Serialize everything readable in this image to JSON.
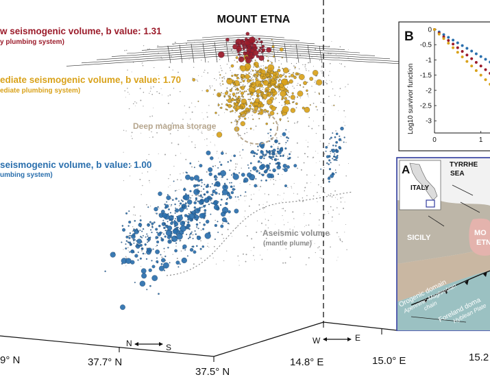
{
  "title": "MOUNT ETNA",
  "volumes": {
    "shallow": {
      "label": "w seismogenic volume, b value: 1.31",
      "sublabel": "y plumbing system)",
      "color": "#9b1b2a"
    },
    "intermediate": {
      "label": "ediate seismogenic volume, b value: 1.70",
      "sublabel": "ediate plumbing system)",
      "color": "#d9a21b"
    },
    "deep": {
      "label": "seismogenic volume, b value: 1.00",
      "sublabel": "umbing system)",
      "color": "#2a6fad"
    },
    "magma_storage": {
      "label": "Deep magma storage",
      "color": "#b6a68e"
    },
    "aseismic": {
      "label": "Aseismic volume",
      "sublabel": "(mantle plume)",
      "color": "#8a8a8a"
    }
  },
  "axes": {
    "ns_label": "N",
    "ns_label_end": "S",
    "we_label": "W",
    "we_label_end": "E",
    "ticks_lat": [
      "9° N",
      "37.7° N",
      "37.5° N"
    ],
    "ticks_lon": [
      "14.8° E",
      "15.0° E",
      "15.2"
    ]
  },
  "panel_b": {
    "letter": "B",
    "ylabel": "Log10 survivor function",
    "yticks": [
      "0",
      "-0.5",
      "-1",
      "-1.5",
      "-2",
      "-2.5",
      "-3"
    ],
    "xticks": [
      "0",
      "1"
    ],
    "chart_data": {
      "type": "scatter",
      "x": [
        0,
        0.1,
        0.2,
        0.3,
        0.4,
        0.5,
        0.6,
        0.7,
        0.8,
        0.9,
        1.0,
        1.1,
        1.2
      ],
      "series": [
        {
          "color": "#2a6fad",
          "values": [
            0,
            -0.08,
            -0.17,
            -0.26,
            -0.35,
            -0.44,
            -0.53,
            -0.62,
            -0.71,
            -0.8,
            -0.89,
            -0.98,
            -1.07
          ]
        },
        {
          "color": "#9b1b2a",
          "values": [
            0,
            -0.12,
            -0.24,
            -0.36,
            -0.48,
            -0.6,
            -0.72,
            -0.84,
            -0.96,
            -1.08,
            -1.2,
            -1.32,
            -1.44
          ]
        },
        {
          "color": "#d9a21b",
          "values": [
            0,
            -0.15,
            -0.3,
            -0.45,
            -0.6,
            -0.75,
            -0.9,
            -1.05,
            -1.2,
            -1.35,
            -1.5,
            -1.65,
            -1.8
          ]
        }
      ],
      "xlim": [
        0,
        1.3
      ],
      "ylim": [
        -3.4,
        0
      ]
    }
  },
  "panel_a": {
    "letter": "A",
    "italy": "ITALY",
    "sea": "TYRRHE",
    "sea2": "SEA",
    "sicily": "SICILY",
    "etna": "MO",
    "etna2": "ETN",
    "orogenic1": "Orogenic domain",
    "orogenic2": "Apenninic-Maghrebian",
    "orogenic3": "chain",
    "foreland1": "Foreland doma",
    "foreland2": "Hyblean Plate"
  }
}
